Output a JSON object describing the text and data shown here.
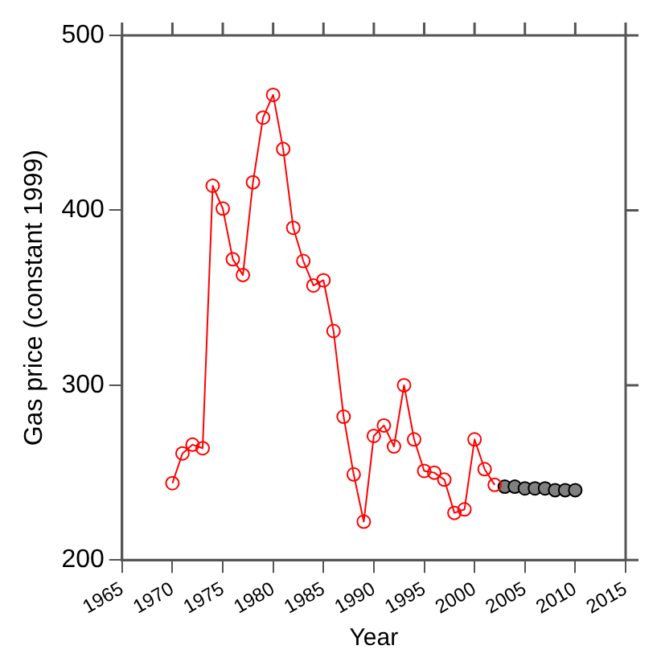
{
  "chart_data": {
    "type": "line",
    "xlabel": "Year",
    "ylabel": "Gas price (constant 1999)",
    "xlim": [
      1965,
      2015
    ],
    "xticks": [
      1965,
      1970,
      1975,
      1980,
      1985,
      1990,
      1995,
      2000,
      2005,
      2010,
      2015
    ],
    "ylim": [
      200,
      500
    ],
    "yticks": [
      200,
      300,
      400,
      500
    ],
    "grid": false,
    "legend": false,
    "marker": "circle",
    "series": [
      {
        "color": "#ff0000",
        "x": [
          1970,
          1971,
          1972,
          1973,
          1974,
          1975,
          1976,
          1977,
          1978,
          1979,
          1980,
          1981,
          1982,
          1983,
          1984,
          1985,
          1986,
          1987,
          1988,
          1989,
          1990,
          1991,
          1992,
          1993,
          1994,
          1995,
          1996,
          1997,
          1998,
          1999,
          2000,
          2001,
          2002
        ],
        "values": [
          244,
          261,
          266,
          264,
          414,
          401,
          372,
          363,
          416,
          453,
          466,
          435,
          390,
          371,
          357,
          360,
          331,
          282,
          249,
          222,
          271,
          277,
          265,
          300,
          269,
          251,
          250,
          246,
          227,
          229,
          269,
          252,
          243
        ]
      },
      {
        "type": "scatter",
        "color": "#808080",
        "x": [
          2003,
          2004,
          2005,
          2006,
          2007,
          2008,
          2009,
          2010
        ],
        "values": [
          242,
          242,
          241,
          241,
          241,
          240,
          240,
          240
        ]
      }
    ]
  }
}
